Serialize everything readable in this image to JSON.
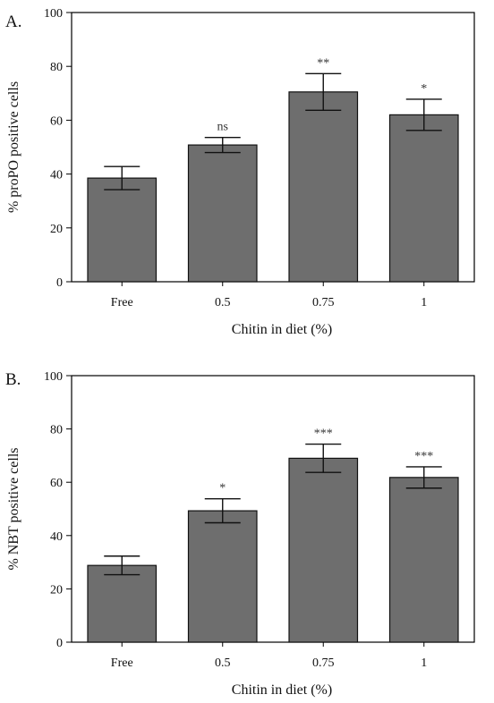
{
  "chart_data": [
    {
      "type": "bar",
      "panel_label": "A.",
      "categories": [
        "Free",
        "0.5",
        "0.75",
        "1"
      ],
      "values": [
        38.5,
        50.8,
        70.5,
        62.0
      ],
      "error": [
        4.3,
        2.8,
        6.8,
        5.8
      ],
      "significance": [
        "",
        "ns",
        "**",
        "*"
      ],
      "xlabel": "Chitin in diet (%)",
      "ylabel": "% proPO positive cells",
      "ylim": [
        0,
        100
      ],
      "yticks": [
        "0",
        "20",
        "40",
        "60",
        "80",
        "100"
      ],
      "bar_color": "#6e6e6e",
      "grid": false
    },
    {
      "type": "bar",
      "panel_label": "B.",
      "categories": [
        "Free",
        "0.5",
        "0.75",
        "1"
      ],
      "values": [
        28.8,
        49.3,
        69.0,
        61.8
      ],
      "error": [
        3.5,
        4.5,
        5.3,
        4.0
      ],
      "significance": [
        "",
        "*",
        "***",
        "***"
      ],
      "xlabel": "Chitin in diet (%)",
      "ylabel": "% NBT positive cells",
      "ylim": [
        0,
        100
      ],
      "yticks": [
        "0",
        "20",
        "40",
        "60",
        "80",
        "100"
      ],
      "bar_color": "#6e6e6e",
      "grid": false
    }
  ]
}
